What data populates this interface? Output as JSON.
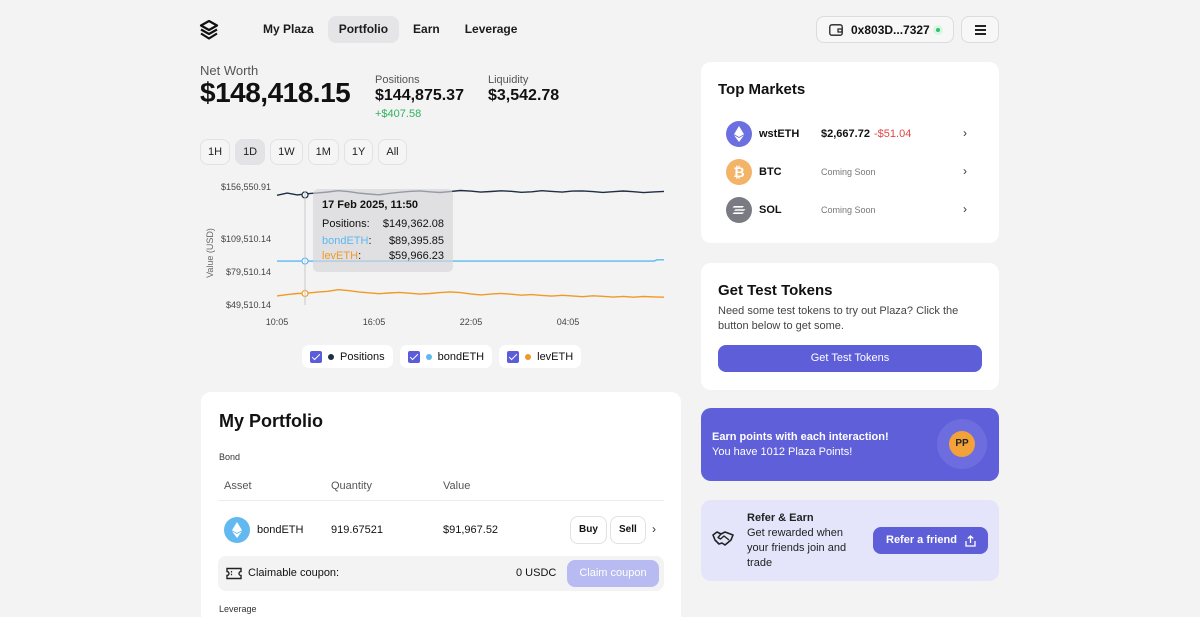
{
  "nav": {
    "items": [
      "My Plaza",
      "Portfolio",
      "Earn",
      "Leverage"
    ],
    "active": "Portfolio"
  },
  "wallet": {
    "address": "0x803D...7327",
    "status_color": "#2fc26b"
  },
  "summary": {
    "net_worth_label": "Net Worth",
    "net_worth": "$148,418.15",
    "positions_label": "Positions",
    "positions": "$144,875.37",
    "positions_change": "+$407.58",
    "liquidity_label": "Liquidity",
    "liquidity": "$3,542.78"
  },
  "ranges": {
    "items": [
      "1H",
      "1D",
      "1W",
      "1M",
      "1Y",
      "All"
    ],
    "active": "1D"
  },
  "tooltip": {
    "date": "17 Feb 2025, 11:50",
    "positions_label": "Positions:",
    "positions_value": "$149,362.08",
    "bond_label": "bondETH",
    "bond_value": "$89,395.85",
    "lev_label": "levETH",
    "lev_value": "$59,966.23"
  },
  "legend": {
    "positions": "Positions",
    "bond": "bondETH",
    "lev": "levETH"
  },
  "chart_data": {
    "type": "line",
    "ylabel": "Value (USD)",
    "y_ticks": [
      "$156,550.91",
      "$109,510.14",
      "$79,510.14",
      "$49,510.14"
    ],
    "x_ticks": [
      "10:05",
      "16:05",
      "22:05",
      "04:05"
    ],
    "series": [
      {
        "name": "Positions",
        "color": "#1e2e44",
        "values": [
          149000,
          151000,
          149362,
          150500,
          151200,
          152000,
          153200,
          152400,
          151000,
          150200,
          149500,
          150800,
          151800,
          152600,
          153000,
          152200,
          151600,
          152400,
          153400,
          152800,
          151900,
          152500,
          153100,
          152700,
          151800,
          152200,
          153200,
          152600,
          151900,
          152800,
          153000,
          152400,
          151700,
          152300,
          152900,
          152300,
          151500,
          152100,
          152600
        ]
      },
      {
        "name": "bondETH",
        "color": "#5db8f2",
        "values": [
          89400,
          89400,
          89396,
          89400,
          89400,
          89400,
          89400,
          89400,
          89400,
          89400,
          89400,
          89400,
          89400,
          89400,
          89400,
          89400,
          89400,
          89400,
          89400,
          89400,
          89400,
          89400,
          89400,
          89400,
          89400,
          89400,
          89400,
          89400,
          89400,
          89400,
          89400,
          89400,
          89400,
          89400,
          89400,
          89400,
          89400,
          89400,
          90600
        ]
      },
      {
        "name": "levETH",
        "color": "#f09a25",
        "values": [
          57800,
          59000,
          59966,
          60300,
          61200,
          62000,
          63400,
          62600,
          61400,
          60600,
          59800,
          60400,
          61000,
          60200,
          59400,
          60000,
          60800,
          61400,
          60800,
          59600,
          58700,
          59400,
          60100,
          59300,
          58400,
          59000,
          58200,
          57600,
          58300,
          57800,
          57100,
          57900,
          57400,
          56700,
          57300,
          56600,
          57200,
          56900,
          56600
        ]
      }
    ]
  },
  "portfolio": {
    "title": "My Portfolio",
    "section_bond": "Bond",
    "col_asset": "Asset",
    "col_quantity": "Quantity",
    "col_value": "Value",
    "row": {
      "asset": "bondETH",
      "quantity": "919.67521",
      "value": "$91,967.52",
      "buy": "Buy",
      "sell": "Sell"
    },
    "coupon_label": "Claimable coupon:",
    "coupon_amount": "0 USDC",
    "claim_button": "Claim coupon",
    "section_leverage": "Leverage"
  },
  "top_markets": {
    "title": "Top Markets",
    "items": [
      {
        "name": "wstETH",
        "price": "$2,667.72",
        "change": "-$51.04",
        "color": "#6b6fe0"
      },
      {
        "name": "BTC",
        "status": "Coming Soon",
        "color": "#f4b468"
      },
      {
        "name": "SOL",
        "status": "Coming Soon",
        "color": "#7a7a82"
      }
    ]
  },
  "test_tokens": {
    "title": "Get Test Tokens",
    "description": "Need some test tokens to try out Plaza? Click the button below to get some.",
    "button": "Get Test Tokens"
  },
  "points": {
    "line1": "Earn points with each interaction!",
    "line2": "You have 1012 Plaza Points!",
    "badge": "PP"
  },
  "refer": {
    "title": "Refer & Earn",
    "description": "Get rewarded when your friends join and trade",
    "button": "Refer a friend"
  },
  "colors": {
    "accent": "#5e5ed8",
    "positive": "#2db35f",
    "negative": "#e04646"
  }
}
